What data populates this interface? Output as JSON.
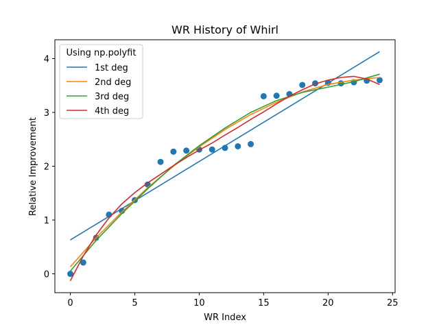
{
  "chart_data": {
    "type": "scatter",
    "title": "WR History of Whirl",
    "xlabel": "WR Index",
    "ylabel": "Relative Improvement",
    "xlim": [
      -1.2,
      25.2
    ],
    "ylim": [
      -0.35,
      4.35
    ],
    "xticks": [
      0,
      5,
      10,
      15,
      20,
      25
    ],
    "yticks": [
      0,
      1,
      2,
      3,
      4
    ],
    "grid": false,
    "legend": {
      "title": "Using np.polyfit",
      "placement": "top-left",
      "entries": [
        "1st deg",
        "2nd deg",
        "3rd deg",
        "4th deg"
      ]
    },
    "points": {
      "color": "#1f77b4",
      "x": [
        0,
        1,
        2,
        3,
        4,
        5,
        6,
        7,
        8,
        9,
        10,
        11,
        12,
        13,
        14,
        15,
        16,
        17,
        18,
        19,
        20,
        21,
        22,
        23,
        24
      ],
      "y": [
        0.0,
        0.21,
        0.67,
        1.1,
        1.17,
        1.37,
        1.66,
        2.08,
        2.27,
        2.29,
        2.31,
        2.31,
        2.34,
        2.37,
        2.41,
        3.3,
        3.31,
        3.34,
        3.51,
        3.54,
        3.55,
        3.54,
        3.56,
        3.59,
        3.6
      ]
    },
    "series": [
      {
        "name": "1st deg",
        "color": "#1f77b4",
        "x": [
          0,
          24
        ],
        "y": [
          0.63,
          4.13
        ]
      },
      {
        "name": "2nd deg",
        "color": "#ff7f0e",
        "x": [
          0,
          2,
          4,
          6,
          8,
          10,
          12,
          14,
          16,
          18,
          20,
          22,
          24
        ],
        "y": [
          0.13,
          0.67,
          1.15,
          1.6,
          2.0,
          2.36,
          2.68,
          2.96,
          3.19,
          3.38,
          3.52,
          3.6,
          3.65
        ]
      },
      {
        "name": "3rd deg",
        "color": "#2ca02c",
        "x": [
          0,
          2,
          4,
          6,
          8,
          10,
          12,
          14,
          16,
          18,
          20,
          22,
          24
        ],
        "y": [
          0.05,
          0.62,
          1.12,
          1.58,
          2.01,
          2.38,
          2.71,
          3.0,
          3.22,
          3.37,
          3.47,
          3.57,
          3.71
        ]
      },
      {
        "name": "4th deg",
        "color": "#d62728",
        "x": [
          0,
          1,
          2,
          3,
          4,
          5,
          6,
          7,
          8,
          9,
          10,
          11,
          12,
          13,
          14,
          15,
          16,
          17,
          18,
          19,
          20,
          21,
          22,
          23,
          24
        ],
        "y": [
          -0.13,
          0.33,
          0.72,
          1.04,
          1.3,
          1.51,
          1.69,
          1.85,
          2.01,
          2.16,
          2.3,
          2.43,
          2.58,
          2.72,
          2.87,
          3.01,
          3.16,
          3.3,
          3.42,
          3.53,
          3.6,
          3.65,
          3.67,
          3.62,
          3.52
        ]
      }
    ]
  }
}
